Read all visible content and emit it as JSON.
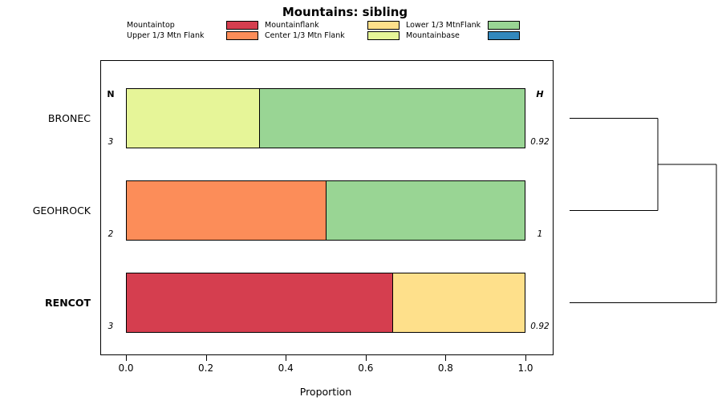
{
  "title": "Mountains: sibling",
  "legend": {
    "items": [
      {
        "label": "Mountaintop",
        "color": "#D53E4F"
      },
      {
        "label": "Mountainflank",
        "color": "#FEE08B"
      },
      {
        "label": "Lower 1/3 MtnFlank",
        "color": "#99D594"
      },
      {
        "label": "Upper 1/3 Mtn Flank",
        "color": "#FC8D59"
      },
      {
        "label": "Center 1/3 Mtn Flank",
        "color": "#E6F598"
      },
      {
        "label": "Mountainbase",
        "color": "#3288BD"
      }
    ]
  },
  "chart_data": {
    "type": "bar",
    "orientation": "horizontal",
    "stacked": true,
    "title": "Mountains: sibling",
    "xlabel": "Proportion",
    "xlim": [
      0,
      1
    ],
    "xticks": [
      "0.0",
      "0.2",
      "0.4",
      "0.6",
      "0.8",
      "1.0"
    ],
    "left_header": "N",
    "right_header": "H",
    "rows": [
      {
        "label": "BRONEC",
        "bold": false,
        "n": 3,
        "h": "0.92",
        "segments": [
          {
            "category": "Center 1/3 Mtn Flank",
            "color": "#E6F598",
            "value": 0.333
          },
          {
            "category": "Lower 1/3 MtnFlank",
            "color": "#99D594",
            "value": 0.667
          }
        ]
      },
      {
        "label": "GEOHROCK",
        "bold": false,
        "n": 2,
        "h": "1",
        "segments": [
          {
            "category": "Upper 1/3 Mtn Flank",
            "color": "#FC8D59",
            "value": 0.5
          },
          {
            "category": "Lower 1/3 MtnFlank",
            "color": "#99D594",
            "value": 0.5
          }
        ]
      },
      {
        "label": "RENCOT",
        "bold": true,
        "n": 3,
        "h": "0.92",
        "segments": [
          {
            "category": "Mountaintop",
            "color": "#D53E4F",
            "value": 0.667
          },
          {
            "category": "Mountainflank",
            "color": "#FEE08B",
            "value": 0.333
          }
        ]
      }
    ]
  },
  "dendrogram": {
    "tree": {
      "height": 1.0,
      "children": [
        {
          "height": 0.6,
          "children": [
            {
              "leaf": "BRONEC"
            },
            {
              "leaf": "GEOHROCK"
            }
          ]
        },
        {
          "leaf": "RENCOT"
        }
      ]
    }
  }
}
